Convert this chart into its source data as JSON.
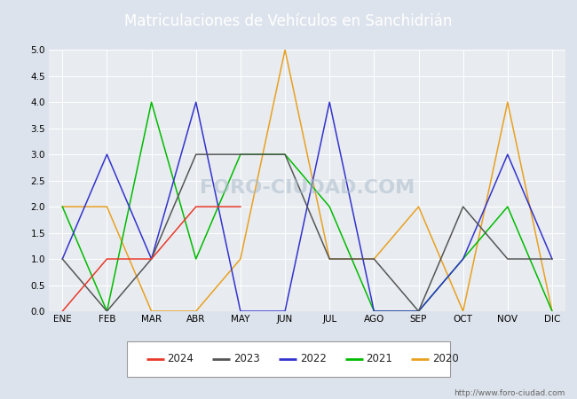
{
  "title": "Matriculaciones de Vehículos en Sanchidrián",
  "months": [
    "ENE",
    "FEB",
    "MAR",
    "ABR",
    "MAY",
    "JUN",
    "JUL",
    "AGO",
    "SEP",
    "OCT",
    "NOV",
    "DIC"
  ],
  "series": {
    "2024": {
      "values": [
        0,
        1,
        1,
        2,
        2,
        null,
        null,
        null,
        null,
        null,
        null,
        null
      ],
      "color": "#e8392a",
      "label": "2024"
    },
    "2023": {
      "values": [
        1,
        0,
        1,
        3,
        3,
        3,
        1,
        1,
        0,
        2,
        1,
        1
      ],
      "color": "#555555",
      "label": "2023"
    },
    "2022": {
      "values": [
        1,
        3,
        1,
        4,
        0,
        0,
        4,
        0,
        0,
        1,
        3,
        1
      ],
      "color": "#3333cc",
      "label": "2022"
    },
    "2021": {
      "values": [
        2,
        0,
        4,
        1,
        3,
        3,
        2,
        0,
        0,
        1,
        2,
        0
      ],
      "color": "#00bb00",
      "label": "2021"
    },
    "2020": {
      "values": [
        2,
        2,
        0,
        0,
        1,
        5,
        1,
        1,
        2,
        0,
        4,
        0
      ],
      "color": "#e8a020",
      "label": "2020"
    }
  },
  "ylim": [
    0,
    5.0
  ],
  "yticks": [
    0.0,
    0.5,
    1.0,
    1.5,
    2.0,
    2.5,
    3.0,
    3.5,
    4.0,
    4.5,
    5.0
  ],
  "fig_bg_color": "#dde3ec",
  "plot_bg_color": "#e8ecf0",
  "header_color": "#5577aa",
  "title_color": "white",
  "watermark": "FORO-CIUDAD.COM",
  "url": "http://www.foro-ciudad.com",
  "grid_color": "#ffffff",
  "legend_order": [
    "2024",
    "2023",
    "2022",
    "2021",
    "2020"
  ]
}
